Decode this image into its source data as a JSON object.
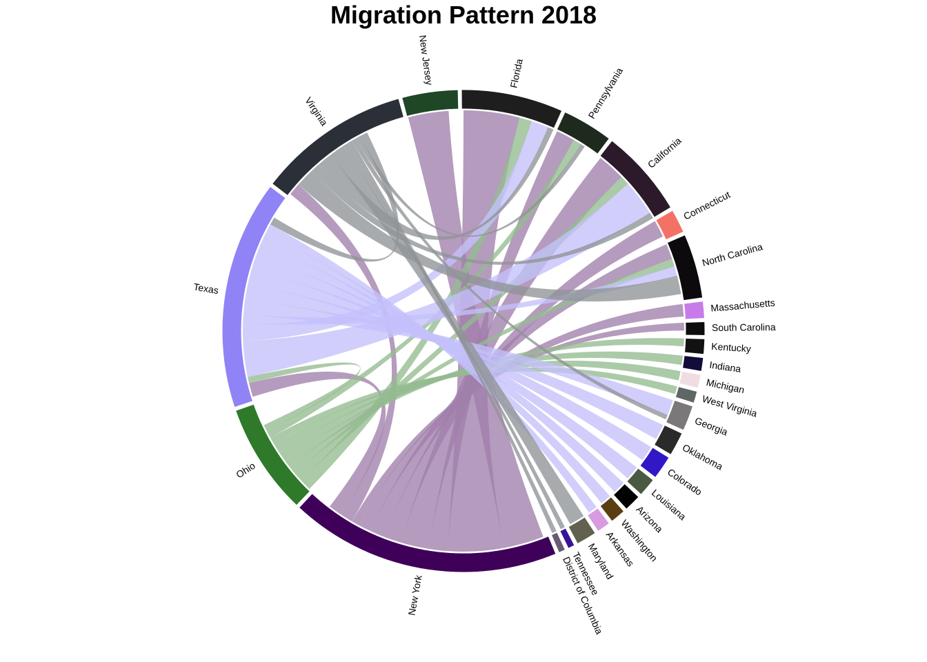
{
  "chart_data": {
    "type": "chord",
    "title": "Migration Pattern 2018",
    "sectors": [
      {
        "name": "New York",
        "color": "#3f005a",
        "size": 16.0
      },
      {
        "name": "Ohio",
        "color": "#2e7a2a",
        "size": 6.6
      },
      {
        "name": "Texas",
        "color": "#8f83f6",
        "size": 13.5
      },
      {
        "name": "Virginia",
        "color": "#2b2f37",
        "size": 9.0
      },
      {
        "name": "New Jersey",
        "color": "#1f4726",
        "size": 3.3
      },
      {
        "name": "Florida",
        "color": "#1e1e1e",
        "size": 6.0
      },
      {
        "name": "Pennsylvania",
        "color": "#1f2a1f",
        "size": 3.0
      },
      {
        "name": "California",
        "color": "#2c1a2b",
        "size": 5.2
      },
      {
        "name": "Connecticut",
        "color": "#f47265",
        "size": 1.4
      },
      {
        "name": "North Carolina",
        "color": "#0c0a0c",
        "size": 3.8
      },
      {
        "name": "Massachusetts",
        "color": "#c87be8",
        "size": 1.0
      },
      {
        "name": "South Carolina",
        "color": "#0d0d0d",
        "size": 0.8
      },
      {
        "name": "Kentucky",
        "color": "#121212",
        "size": 0.9
      },
      {
        "name": "Indiana",
        "color": "#120c3a",
        "size": 0.8
      },
      {
        "name": "Michigan",
        "color": "#f0dde2",
        "size": 0.8
      },
      {
        "name": "West Virginia",
        "color": "#5f6766",
        "size": 0.7
      },
      {
        "name": "Georgia",
        "color": "#7a7879",
        "size": 1.5
      },
      {
        "name": "Oklahoma",
        "color": "#2a2a2a",
        "size": 1.4
      },
      {
        "name": "Colorado",
        "color": "#3118c6",
        "size": 1.4
      },
      {
        "name": "Louisiana",
        "color": "#4a5a40",
        "size": 1.1
      },
      {
        "name": "Arizona",
        "color": "#020202",
        "size": 1.0
      },
      {
        "name": "Washington",
        "color": "#5b3d12",
        "size": 0.9
      },
      {
        "name": "Arkansas",
        "color": "#d99be0",
        "size": 0.8
      },
      {
        "name": "Maryland",
        "color": "#626150",
        "size": 1.2
      },
      {
        "name": "Tennessee",
        "color": "#3a1296",
        "size": 0.4
      },
      {
        "name": "District of Columbia",
        "color": "#6a5a72",
        "size": 0.4
      }
    ],
    "flows": [
      {
        "from": "New York",
        "to": "New Jersey",
        "value": 2.6,
        "color": "#a07fab"
      },
      {
        "from": "New York",
        "to": "Florida",
        "value": 3.6,
        "color": "#a07fab"
      },
      {
        "from": "New York",
        "to": "Pennsylvania",
        "value": 1.2,
        "color": "#a07fab"
      },
      {
        "from": "New York",
        "to": "California",
        "value": 1.8,
        "color": "#a07fab"
      },
      {
        "from": "New York",
        "to": "Connecticut",
        "value": 1.1,
        "color": "#a07fab"
      },
      {
        "from": "New York",
        "to": "North Carolina",
        "value": 1.0,
        "color": "#a07fab"
      },
      {
        "from": "New York",
        "to": "Massachusetts",
        "value": 0.8,
        "color": "#a07fab"
      },
      {
        "from": "New York",
        "to": "South Carolina",
        "value": 0.5,
        "color": "#a07fab"
      },
      {
        "from": "New York",
        "to": "Virginia",
        "value": 0.8,
        "color": "#a07fab"
      },
      {
        "from": "New York",
        "to": "Texas",
        "value": 0.9,
        "color": "#a07fab"
      },
      {
        "from": "Ohio",
        "to": "Florida",
        "value": 0.8,
        "color": "#94bb8f"
      },
      {
        "from": "Ohio",
        "to": "California",
        "value": 0.6,
        "color": "#94bb8f"
      },
      {
        "from": "Ohio",
        "to": "North Carolina",
        "value": 0.5,
        "color": "#94bb8f"
      },
      {
        "from": "Ohio",
        "to": "Kentucky",
        "value": 0.5,
        "color": "#94bb8f"
      },
      {
        "from": "Ohio",
        "to": "Indiana",
        "value": 0.6,
        "color": "#94bb8f"
      },
      {
        "from": "Ohio",
        "to": "Michigan",
        "value": 0.6,
        "color": "#94bb8f"
      },
      {
        "from": "Ohio",
        "to": "West Virginia",
        "value": 0.5,
        "color": "#94bb8f"
      },
      {
        "from": "Ohio",
        "to": "Pennsylvania",
        "value": 0.5,
        "color": "#94bb8f"
      },
      {
        "from": "Ohio",
        "to": "Texas",
        "value": 0.4,
        "color": "#94bb8f"
      },
      {
        "from": "Texas",
        "to": "California",
        "value": 2.3,
        "color": "#c4c0fb"
      },
      {
        "from": "Texas",
        "to": "Florida",
        "value": 1.1,
        "color": "#c4c0fb"
      },
      {
        "from": "Texas",
        "to": "North Carolina",
        "value": 0.6,
        "color": "#c4c0fb"
      },
      {
        "from": "Texas",
        "to": "Georgia",
        "value": 1.0,
        "color": "#c4c0fb"
      },
      {
        "from": "Texas",
        "to": "Oklahoma",
        "value": 1.0,
        "color": "#c4c0fb"
      },
      {
        "from": "Texas",
        "to": "Colorado",
        "value": 1.0,
        "color": "#c4c0fb"
      },
      {
        "from": "Texas",
        "to": "Louisiana",
        "value": 0.9,
        "color": "#c4c0fb"
      },
      {
        "from": "Texas",
        "to": "Arizona",
        "value": 0.8,
        "color": "#c4c0fb"
      },
      {
        "from": "Texas",
        "to": "Washington",
        "value": 0.7,
        "color": "#c4c0fb"
      },
      {
        "from": "Texas",
        "to": "Arkansas",
        "value": 0.6,
        "color": "#c4c0fb"
      },
      {
        "from": "Virginia",
        "to": "North Carolina",
        "value": 1.2,
        "color": "#8f9396"
      },
      {
        "from": "Virginia",
        "to": "California",
        "value": 0.6,
        "color": "#8f9396"
      },
      {
        "from": "Virginia",
        "to": "Florida",
        "value": 1.0,
        "color": "#8f9396"
      },
      {
        "from": "Virginia",
        "to": "Maryland",
        "value": 1.0,
        "color": "#8f9396"
      },
      {
        "from": "Virginia",
        "to": "Tennessee",
        "value": 0.3,
        "color": "#8f9396"
      },
      {
        "from": "Virginia",
        "to": "District of Columbia",
        "value": 0.3,
        "color": "#8f9396"
      },
      {
        "from": "Virginia",
        "to": "Georgia",
        "value": 0.3,
        "color": "#8f9396"
      },
      {
        "from": "Virginia",
        "to": "Pennsylvania",
        "value": 0.3,
        "color": "#8f9396"
      },
      {
        "from": "Virginia",
        "to": "Texas",
        "value": 0.5,
        "color": "#8f9396"
      }
    ]
  }
}
